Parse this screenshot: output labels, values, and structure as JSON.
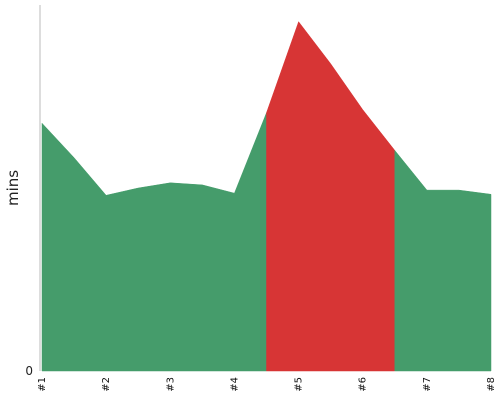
{
  "chart_data": {
    "type": "area",
    "ylabel": "mins",
    "ylim": [
      0,
      350
    ],
    "y_ticks": [
      0
    ],
    "x_labels": [
      "#1",
      "#2",
      "#3",
      "#4",
      "#5",
      "#6",
      "#7",
      "#8"
    ],
    "x": [
      1,
      1.5,
      2,
      2.5,
      3,
      3.5,
      4,
      4.5,
      5,
      5.5,
      6,
      6.5,
      7,
      7.5,
      8
    ],
    "values": [
      237,
      204,
      168,
      175,
      180,
      178,
      170,
      247,
      334,
      294,
      250,
      211,
      173,
      173,
      169
    ],
    "segments": [
      {
        "from": 1,
        "to": 4.5,
        "color": "#459c6b"
      },
      {
        "from": 4.5,
        "to": 6.5,
        "color": "#d73535"
      },
      {
        "from": 6.5,
        "to": 8,
        "color": "#459c6b"
      }
    ],
    "grid": false,
    "legend": "none"
  }
}
